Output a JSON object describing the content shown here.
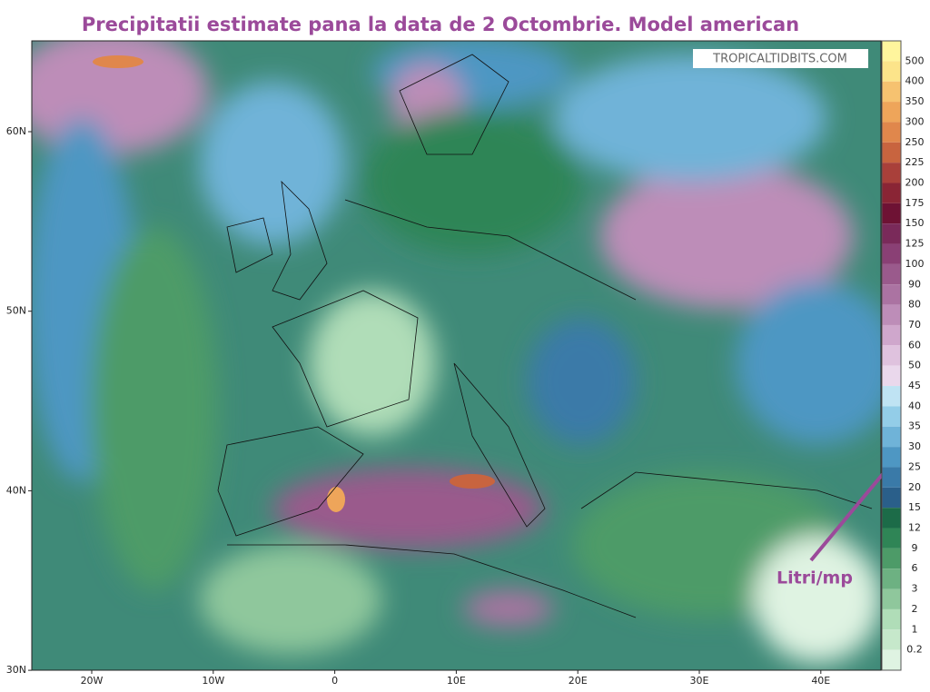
{
  "header": {
    "title": "Precipitatii estimate pana la data de 2 Octombrie. Model american"
  },
  "watermark": "TROPICALTIDBITS.COM",
  "annotation": "Litri/mp",
  "map": {
    "lat_labels": [
      "60N",
      "50N",
      "40N",
      "30N"
    ],
    "lon_labels": [
      "20W",
      "10W",
      "0",
      "10E",
      "20E",
      "30E",
      "40E"
    ]
  },
  "colorbar": {
    "top_color": "#fff59d",
    "below_color": "#ffffff",
    "levels": [
      {
        "value": 500,
        "color": "#fce48a"
      },
      {
        "value": 400,
        "color": "#f6c270"
      },
      {
        "value": 350,
        "color": "#eea55a"
      },
      {
        "value": 300,
        "color": "#e0874c"
      },
      {
        "value": 250,
        "color": "#c8643f"
      },
      {
        "value": 225,
        "color": "#a9403a"
      },
      {
        "value": 200,
        "color": "#8a2535"
      },
      {
        "value": 175,
        "color": "#6e1234"
      },
      {
        "value": 150,
        "color": "#7a2a5a"
      },
      {
        "value": 125,
        "color": "#8a4075"
      },
      {
        "value": 100,
        "color": "#9a5a8c"
      },
      {
        "value": 90,
        "color": "#ab73a2"
      },
      {
        "value": 80,
        "color": "#bd8db8"
      },
      {
        "value": 70,
        "color": "#cfa7cc"
      },
      {
        "value": 60,
        "color": "#dfc2de"
      },
      {
        "value": 50,
        "color": "#ead8ec"
      },
      {
        "value": 45,
        "color": "#bfe3f3"
      },
      {
        "value": 40,
        "color": "#93cde8"
      },
      {
        "value": 35,
        "color": "#6fb3d8"
      },
      {
        "value": 30,
        "color": "#4e97c3"
      },
      {
        "value": 25,
        "color": "#3a7aa8"
      },
      {
        "value": 20,
        "color": "#2a5f8a"
      },
      {
        "value": 15,
        "color": "#1c6b48"
      },
      {
        "value": 12,
        "color": "#2f8556"
      },
      {
        "value": 9,
        "color": "#4d9b68"
      },
      {
        "value": 6,
        "color": "#6db182"
      },
      {
        "value": 3,
        "color": "#8fc79c"
      },
      {
        "value": 2,
        "color": "#b0ddb8"
      },
      {
        "value": 1,
        "color": "#c6e8cb"
      },
      {
        "value": 0.2,
        "color": "#dff3e2"
      }
    ]
  }
}
